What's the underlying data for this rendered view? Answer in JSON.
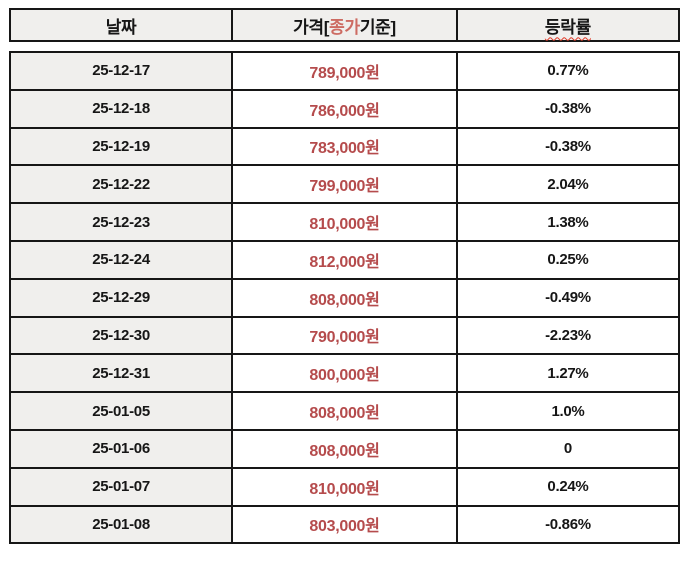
{
  "colors": {
    "price_red": "#b54b4c",
    "header_highlight_red": "#cd6b62",
    "squiggle_red": "#e03a28",
    "cell_gray": "#f0efed",
    "border_black": "#161616"
  },
  "table": {
    "header": {
      "date": "날짜",
      "price_prefix": "가격[",
      "price_highlight": "종가",
      "price_suffix": "기준]",
      "change": "등락률"
    },
    "rows": [
      {
        "date": "25-12-17",
        "price": "789,000원",
        "change": "0.77%"
      },
      {
        "date": "25-12-18",
        "price": "786,000원",
        "change": "-0.38%"
      },
      {
        "date": "25-12-19",
        "price": "783,000원",
        "change": "-0.38%"
      },
      {
        "date": "25-12-22",
        "price": "799,000원",
        "change": "2.04%"
      },
      {
        "date": "25-12-23",
        "price": "810,000원",
        "change": "1.38%"
      },
      {
        "date": "25-12-24",
        "price": "812,000원",
        "change": "0.25%"
      },
      {
        "date": "25-12-29",
        "price": "808,000원",
        "change": "-0.49%"
      },
      {
        "date": "25-12-30",
        "price": "790,000원",
        "change": "-2.23%"
      },
      {
        "date": "25-12-31",
        "price": "800,000원",
        "change": "1.27%"
      },
      {
        "date": "25-01-05",
        "price": "808,000원",
        "change": "1.0%"
      },
      {
        "date": "25-01-06",
        "price": "808,000원",
        "change": "0"
      },
      {
        "date": "25-01-07",
        "price": "810,000원",
        "change": "0.24%"
      },
      {
        "date": "25-01-08",
        "price": "803,000원",
        "change": "-0.86%"
      }
    ]
  },
  "chart_data": {
    "type": "table",
    "title": "가격[종가기준] 및 등락률",
    "columns": [
      "날짜",
      "가격[종가기준]",
      "등락률"
    ],
    "rows": [
      [
        "25-12-17",
        "789,000원",
        "0.77%"
      ],
      [
        "25-12-18",
        "786,000원",
        "-0.38%"
      ],
      [
        "25-12-19",
        "783,000원",
        "-0.38%"
      ],
      [
        "25-12-22",
        "799,000원",
        "2.04%"
      ],
      [
        "25-12-23",
        "810,000원",
        "1.38%"
      ],
      [
        "25-12-24",
        "812,000원",
        "0.25%"
      ],
      [
        "25-12-29",
        "808,000원",
        "-0.49%"
      ],
      [
        "25-12-30",
        "790,000원",
        "-2.23%"
      ],
      [
        "25-12-31",
        "800,000원",
        "1.27%"
      ],
      [
        "25-01-05",
        "808,000원",
        "1.0%"
      ],
      [
        "25-01-06",
        "808,000원",
        "0"
      ],
      [
        "25-01-07",
        "810,000원",
        "0.24%"
      ],
      [
        "25-01-08",
        "803,000원",
        "-0.86%"
      ]
    ],
    "prices_krw": [
      789000,
      786000,
      783000,
      799000,
      810000,
      812000,
      808000,
      790000,
      800000,
      808000,
      808000,
      810000,
      803000
    ],
    "change_pct": [
      0.77,
      -0.38,
      -0.38,
      2.04,
      1.38,
      0.25,
      -0.49,
      -2.23,
      1.27,
      1.0,
      0,
      0.24,
      -0.86
    ]
  }
}
